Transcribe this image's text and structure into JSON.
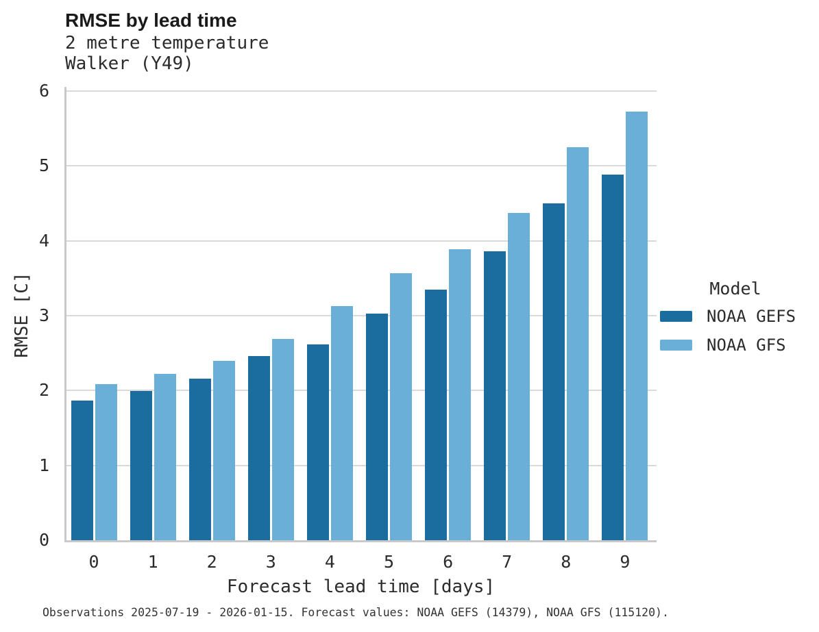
{
  "header": {
    "title": "RMSE by lead time",
    "subtitle_lines": [
      "2 metre temperature",
      "Walker (Y49)"
    ]
  },
  "footer": {
    "note": "Observations 2025-07-19 - 2026-01-15. Forecast values: NOAA GEFS (14379), NOAA GFS (115120)."
  },
  "legend": {
    "title": "Model"
  },
  "chart_data": {
    "type": "bar",
    "title": "RMSE by lead time",
    "subtitle": "2 metre temperature, Walker (Y49)",
    "xlabel": "Forecast lead time [days]",
    "ylabel": "RMSE [C]",
    "categories": [
      "0",
      "1",
      "2",
      "3",
      "4",
      "5",
      "6",
      "7",
      "8",
      "9"
    ],
    "series": [
      {
        "name": "NOAA GEFS",
        "color": "#1a6d9e",
        "values": [
          1.87,
          1.99,
          2.16,
          2.46,
          2.62,
          3.03,
          3.35,
          3.86,
          4.5,
          4.88
        ]
      },
      {
        "name": "NOAA GFS",
        "color": "#69afd8",
        "values": [
          2.09,
          2.22,
          2.4,
          2.69,
          3.13,
          3.57,
          3.89,
          4.37,
          5.25,
          5.73
        ]
      }
    ],
    "ylim": [
      0,
      6
    ],
    "yticks": [
      0,
      1,
      2,
      3,
      4,
      5,
      6
    ],
    "grid": "horizontal",
    "legend_title": "Model",
    "legend_position": "right"
  }
}
